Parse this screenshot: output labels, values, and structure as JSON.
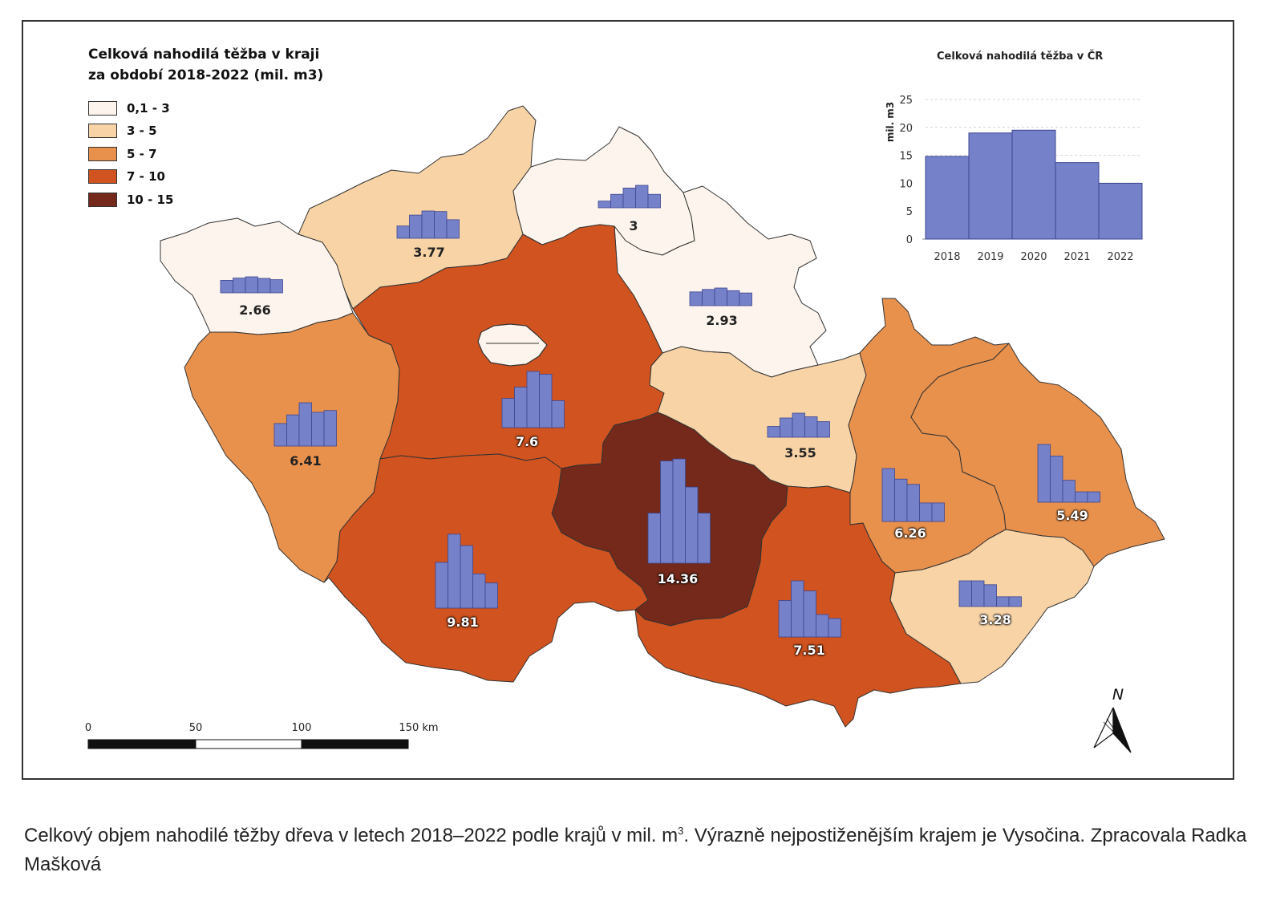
{
  "legend": {
    "title_line1": "Celková nahodilá těžba v kraji",
    "title_line2": "za období 2018-2022 (mil. m3)",
    "classes": [
      {
        "label": "0,1 - 3",
        "color": "#fdf5ed"
      },
      {
        "label": "3 - 5",
        "color": "#f7d3a6"
      },
      {
        "label": "5 - 7",
        "color": "#e8914d"
      },
      {
        "label": "7 - 10",
        "color": "#d1531f"
      },
      {
        "label": "10 - 15",
        "color": "#74291a"
      }
    ]
  },
  "bar_color": "#7581c8",
  "regions": [
    {
      "id": "karlovarsky",
      "value": "2.66",
      "class": 0,
      "bars": [
        0.78,
        0.92,
        1.0,
        0.9,
        0.82
      ]
    },
    {
      "id": "ustecky",
      "value": "3.77",
      "class": 1,
      "bars": [
        0.45,
        0.85,
        1.0,
        0.98,
        0.68
      ]
    },
    {
      "id": "liberecky",
      "value": "3",
      "class": 0,
      "bars": [
        0.3,
        0.6,
        0.88,
        1.0,
        0.6
      ]
    },
    {
      "id": "kralovehradecky",
      "value": "2.93",
      "class": 0,
      "bars": [
        0.78,
        0.92,
        1.0,
        0.85,
        0.72
      ]
    },
    {
      "id": "plzensky",
      "value": "6.41",
      "class": 2,
      "bars": [
        0.52,
        0.72,
        1.0,
        0.78,
        0.82
      ]
    },
    {
      "id": "stredocesky",
      "value": "7.6",
      "class": 3,
      "bars": [
        0.52,
        0.72,
        1.0,
        0.95,
        0.48
      ]
    },
    {
      "id": "pardubicky",
      "value": "3.55",
      "class": 1,
      "bars": [
        0.45,
        0.8,
        1.0,
        0.85,
        0.65
      ]
    },
    {
      "id": "olomoucky",
      "value": "6.26",
      "class": 2,
      "bars": [
        1.0,
        0.8,
        0.7,
        0.35,
        0.35
      ]
    },
    {
      "id": "moravskoslezsky",
      "value": "5.49",
      "class": 2,
      "bars": [
        1.0,
        0.8,
        0.38,
        0.18,
        0.18
      ]
    },
    {
      "id": "vysocina",
      "value": "14.36",
      "class": 4,
      "bars": [
        0.48,
        0.98,
        1.0,
        0.73,
        0.48
      ]
    },
    {
      "id": "jihocesky",
      "value": "9.81",
      "class": 3,
      "bars": [
        0.6,
        0.97,
        0.82,
        0.45,
        0.33
      ]
    },
    {
      "id": "jihomoravsky",
      "value": "7.51",
      "class": 3,
      "bars": [
        0.65,
        1.0,
        0.82,
        0.4,
        0.33
      ]
    },
    {
      "id": "zlinsky",
      "value": "3.28",
      "class": 1,
      "bars": [
        1.0,
        1.0,
        0.85,
        0.38,
        0.38
      ]
    },
    {
      "id": "praha",
      "value": "",
      "class": 0,
      "bars": []
    }
  ],
  "chart_data": {
    "type": "bar",
    "title": "Celková nahodilá těžba v ČR",
    "ylabel": "mil. m3",
    "categories": [
      "2018",
      "2019",
      "2020",
      "2021",
      "2022"
    ],
    "values": [
      14.8,
      19.0,
      19.5,
      13.7,
      10.0
    ],
    "ylim": [
      0,
      25
    ],
    "yticks": [
      0,
      5,
      10,
      15,
      20,
      25
    ],
    "color": "#7581c8",
    "grid": true
  },
  "scale_bar": {
    "labels": [
      "0",
      "50",
      "100",
      "150 km"
    ]
  },
  "north_arrow": {
    "label": "N",
    "icon": "north-arrow-icon"
  },
  "caption": {
    "text_before_sup": "Celkový objem nahodilé těžby dřeva v letech 2018–2022 podle krajů v mil. m",
    "sup": "3",
    "text_after_sup": ". Výrazně nejpostiženějším krajem je Vysočina.  Zpracovala Radka Mašková"
  }
}
